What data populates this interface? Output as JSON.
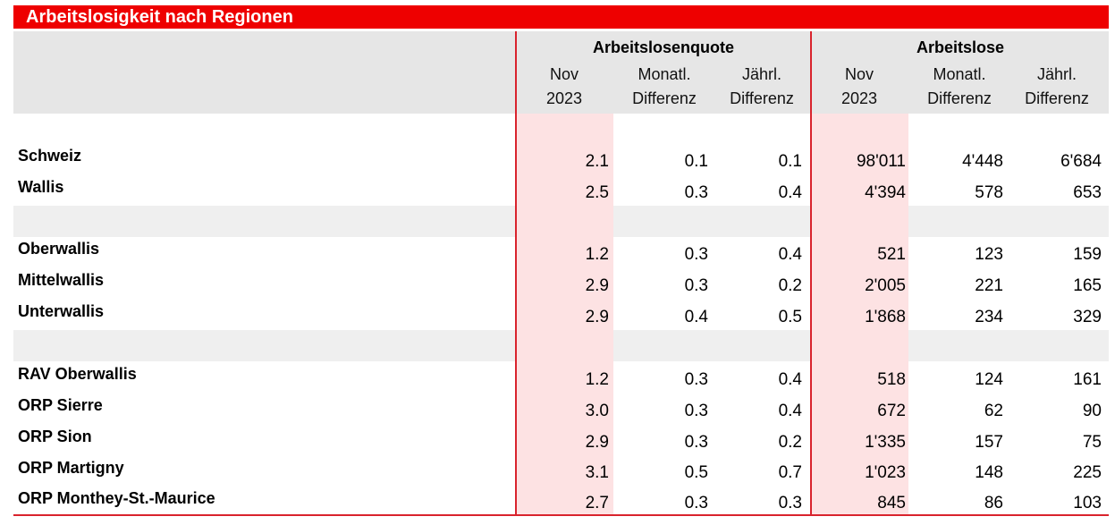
{
  "title": "Arbeitslosigkeit nach Regionen",
  "groups": {
    "quote": "Arbeitslosenquote",
    "arbeitslose": "Arbeitslose"
  },
  "subheaders": {
    "quote": [
      {
        "line1": "Nov",
        "line2": "2023"
      },
      {
        "line1": "Monatl.",
        "line2": "Differenz"
      },
      {
        "line1": "Jährl.",
        "line2": "Differenz"
      }
    ],
    "arbeitslose": [
      {
        "line1": "Nov",
        "line2": "2023"
      },
      {
        "line1": "Monatl.",
        "line2": "Differenz"
      },
      {
        "line1": "Jährl.",
        "line2": "Differenz"
      }
    ]
  },
  "rows": [
    {
      "label": "Schweiz",
      "values": [
        "2.1",
        "0.1",
        "0.1",
        "98'011",
        "4'448",
        "6'684"
      ]
    },
    {
      "label": "Wallis",
      "values": [
        "2.5",
        "0.3",
        "0.4",
        "4'394",
        "578",
        "653"
      ]
    },
    {
      "label": "Oberwallis",
      "values": [
        "1.2",
        "0.3",
        "0.4",
        "521",
        "123",
        "159"
      ]
    },
    {
      "label": "Mittelwallis",
      "values": [
        "2.9",
        "0.3",
        "0.2",
        "2'005",
        "221",
        "165"
      ]
    },
    {
      "label": "Unterwallis",
      "values": [
        "2.9",
        "0.4",
        "0.5",
        "1'868",
        "234",
        "329"
      ]
    },
    {
      "label": "RAV Oberwallis",
      "values": [
        "1.2",
        "0.3",
        "0.4",
        "518",
        "124",
        "161"
      ]
    },
    {
      "label": "ORP Sierre",
      "values": [
        "3.0",
        "0.3",
        "0.4",
        "672",
        "62",
        "90"
      ]
    },
    {
      "label": "ORP Sion",
      "values": [
        "2.9",
        "0.3",
        "0.2",
        "1'335",
        "157",
        "75"
      ]
    },
    {
      "label": "ORP Martigny",
      "values": [
        "3.1",
        "0.5",
        "0.7",
        "1'023",
        "148",
        "225"
      ]
    },
    {
      "label": "ORP Monthey-St.-Maurice",
      "values": [
        "2.7",
        "0.3",
        "0.3",
        "845",
        "86",
        "103"
      ]
    }
  ]
}
